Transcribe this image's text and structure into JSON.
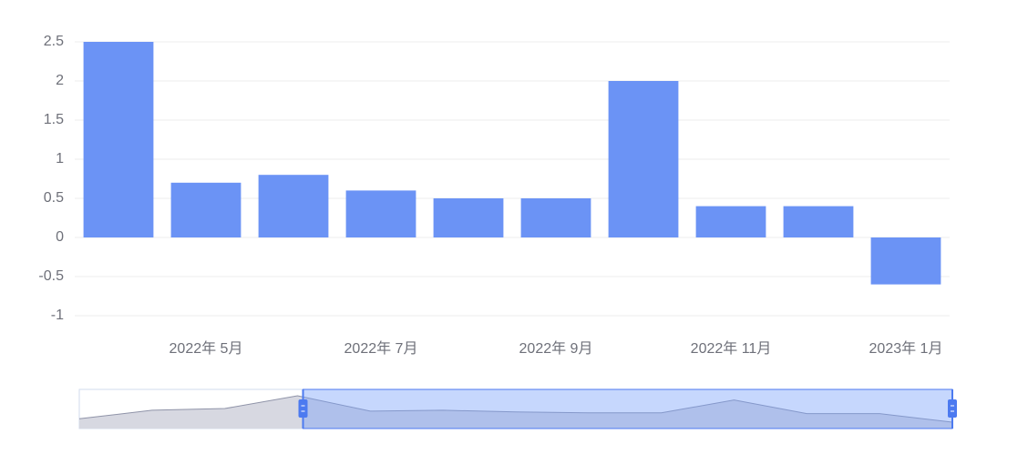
{
  "chart_data": {
    "type": "bar",
    "categories": [
      null,
      "2022年 5月",
      null,
      "2022年 7月",
      null,
      "2022年 9月",
      null,
      "2022年 11月",
      null,
      "2023年 1月"
    ],
    "values": [
      2.5,
      0.7,
      0.8,
      0.6,
      0.5,
      0.5,
      2.0,
      0.4,
      0.4,
      -0.6
    ],
    "color": "#6b93f5",
    "ylim": [
      -1,
      2.5
    ],
    "yticks": [
      -1,
      -0.5,
      0,
      0.5,
      1,
      1.5,
      2,
      2.5
    ],
    "grid": true,
    "data_zoom": {
      "leading_values": [
        -0.2,
        0.8,
        1.0
      ]
    }
  }
}
